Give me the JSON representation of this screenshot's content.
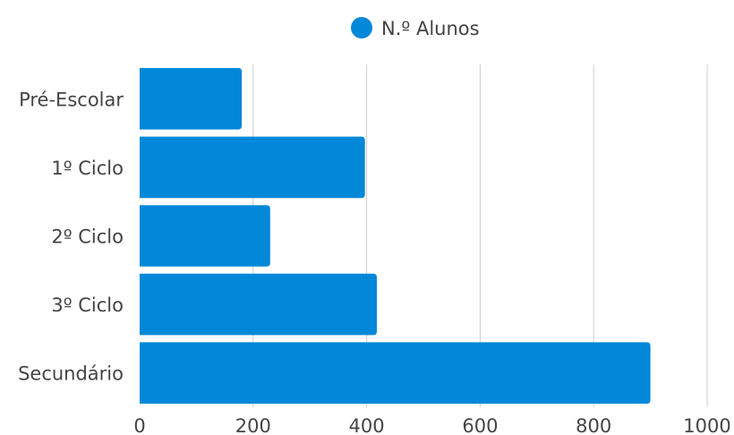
{
  "chart_data": {
    "type": "bar",
    "orientation": "horizontal",
    "categories": [
      "Pré-Escolar",
      "1º Ciclo",
      "2º Ciclo",
      "3º Ciclo",
      "Secundário"
    ],
    "series": [
      {
        "name": "N.º Alunos",
        "values": [
          180,
          397,
          230,
          418,
          900
        ],
        "color": "#0288d9"
      }
    ],
    "xlim": [
      0,
      1000
    ],
    "xticks": [
      0,
      200,
      400,
      600,
      800,
      1000
    ],
    "grid": true,
    "legend_position": "top-center"
  }
}
